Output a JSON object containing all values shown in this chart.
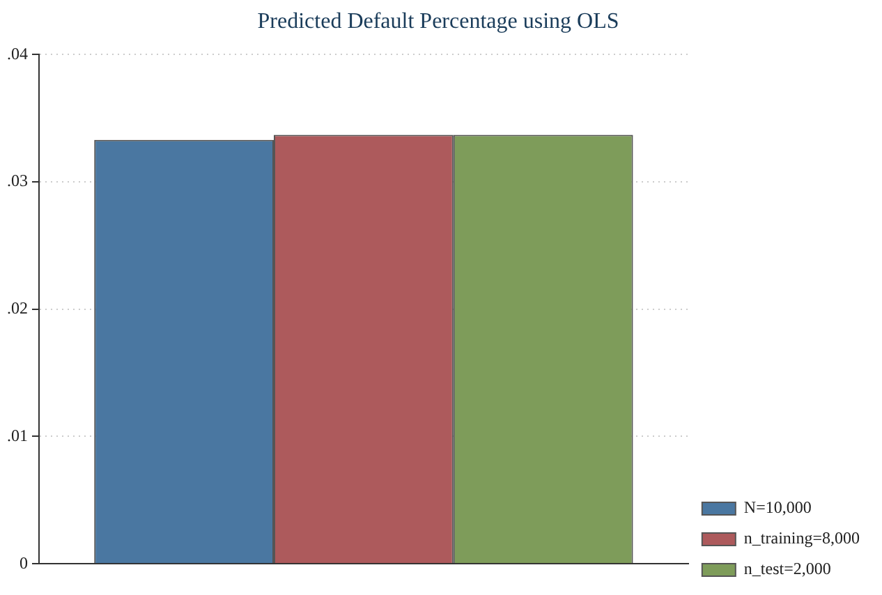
{
  "chart_data": {
    "type": "bar",
    "title": "Predicted Default Percentage using OLS",
    "categories": [
      null
    ],
    "series": [
      {
        "name": "N=10,000",
        "color": "#4a77a1",
        "values": [
          0.0333
        ]
      },
      {
        "name": "n_training=8,000",
        "color": "#ad5a5c",
        "values": [
          0.0337
        ]
      },
      {
        "name": "n_test=2,000",
        "color": "#7e9c5a",
        "values": [
          0.0337
        ]
      }
    ],
    "ylim": [
      0,
      0.04
    ],
    "yticks": [
      {
        "value": 0,
        "label": "0"
      },
      {
        "value": 0.01,
        "label": ".01"
      },
      {
        "value": 0.02,
        "label": ".02"
      },
      {
        "value": 0.03,
        "label": ".03"
      },
      {
        "value": 0.04,
        "label": ".04"
      }
    ],
    "grid": "y",
    "legend": "bottom right"
  }
}
